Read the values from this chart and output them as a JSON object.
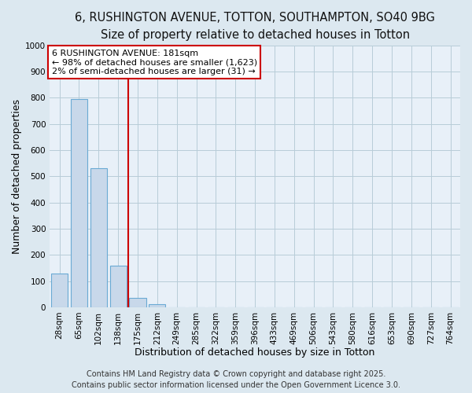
{
  "title_line1": "6, RUSHINGTON AVENUE, TOTTON, SOUTHAMPTON, SO40 9BG",
  "title_line2": "Size of property relative to detached houses in Totton",
  "xlabel": "Distribution of detached houses by size in Totton",
  "ylabel": "Number of detached properties",
  "categories": [
    "28sqm",
    "65sqm",
    "102sqm",
    "138sqm",
    "175sqm",
    "212sqm",
    "249sqm",
    "285sqm",
    "322sqm",
    "359sqm",
    "396sqm",
    "433sqm",
    "469sqm",
    "506sqm",
    "543sqm",
    "580sqm",
    "616sqm",
    "653sqm",
    "690sqm",
    "727sqm",
    "764sqm"
  ],
  "values": [
    130,
    795,
    530,
    160,
    37,
    12,
    0,
    0,
    0,
    0,
    0,
    0,
    0,
    0,
    0,
    0,
    0,
    0,
    0,
    0,
    0
  ],
  "bar_color": "#c8d8ea",
  "bar_edge_color": "#6aaad4",
  "vline_x_index": 4,
  "vline_color": "#cc0000",
  "annotation_text": "6 RUSHINGTON AVENUE: 181sqm\n← 98% of detached houses are smaller (1,623)\n2% of semi-detached houses are larger (31) →",
  "annotation_box_color": "#ffffff",
  "annotation_box_edge_color": "#cc0000",
  "ylim": [
    0,
    1000
  ],
  "yticks": [
    0,
    100,
    200,
    300,
    400,
    500,
    600,
    700,
    800,
    900,
    1000
  ],
  "footer_line1": "Contains HM Land Registry data © Crown copyright and database right 2025.",
  "footer_line2": "Contains public sector information licensed under the Open Government Licence 3.0.",
  "bg_color": "#dce8f0",
  "plot_bg_color": "#e8f0f8",
  "grid_color": "#b8ccd8",
  "title_fontsize": 10.5,
  "subtitle_fontsize": 9.5,
  "axis_label_fontsize": 9,
  "tick_fontsize": 7.5,
  "annotation_fontsize": 8,
  "footer_fontsize": 7
}
